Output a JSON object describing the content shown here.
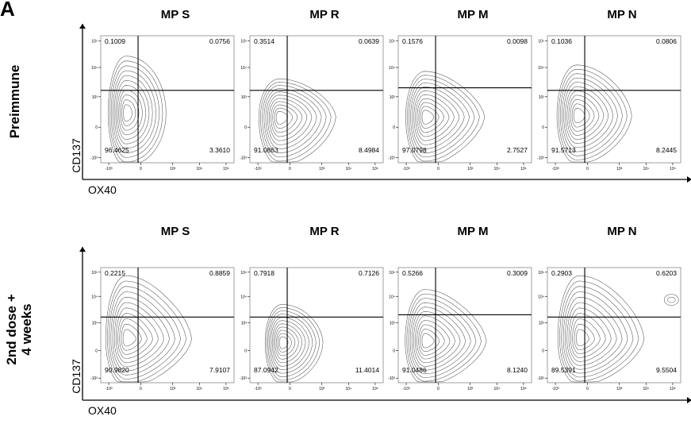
{
  "figure": {
    "panel_label": "A",
    "y_axis_label": "CD137",
    "x_axis_label": "OX40"
  },
  "chart_data": [
    {
      "type": "contour",
      "row": "Preimmune",
      "title": "MP S",
      "xlabel": "OX40",
      "ylabel": "CD137",
      "x_ticks": [
        "-10³",
        "0",
        "10³",
        "10⁴",
        "10⁵"
      ],
      "y_ticks": [
        "10⁵",
        "10⁴",
        "10³",
        "0",
        "-10³"
      ],
      "gate": {
        "x": 0.28,
        "y": 0.57
      },
      "quadrants": {
        "upper_left": "0.1009",
        "upper_right": "0.0756",
        "lower_left": "96.4625",
        "lower_right": "3.3610"
      }
    },
    {
      "type": "contour",
      "row": "Preimmune",
      "title": "MP R",
      "xlabel": "OX40",
      "ylabel": "CD137",
      "x_ticks": [
        "-10³",
        "0",
        "10³",
        "10⁴",
        "10⁵"
      ],
      "y_ticks": [
        "10⁵",
        "10⁴",
        "10³",
        "0",
        "-10³"
      ],
      "gate": {
        "x": 0.28,
        "y": 0.57
      },
      "quadrants": {
        "upper_left": "0.3514",
        "upper_right": "0.0639",
        "lower_left": "91.0863",
        "lower_right": "8.4984"
      }
    },
    {
      "type": "contour",
      "row": "Preimmune",
      "title": "MP M",
      "xlabel": "OX40",
      "ylabel": "CD137",
      "x_ticks": [
        "-10³",
        "0",
        "10³",
        "10⁴",
        "10⁵"
      ],
      "y_ticks": [
        "10⁵",
        "10⁴",
        "10³",
        "0",
        "-10³"
      ],
      "gate": {
        "x": 0.28,
        "y": 0.59
      },
      "quadrants": {
        "upper_left": "0.1576",
        "upper_right": "0.0098",
        "lower_left": "97.0798",
        "lower_right": "2.7527"
      }
    },
    {
      "type": "contour",
      "row": "Preimmune",
      "title": "MP N",
      "xlabel": "OX40",
      "ylabel": "CD137",
      "x_ticks": [
        "-10³",
        "0",
        "10³",
        "10⁴",
        "10⁵"
      ],
      "y_ticks": [
        "10⁵",
        "10⁴",
        "10³",
        "0",
        "-10³"
      ],
      "gate": {
        "x": 0.28,
        "y": 0.57
      },
      "quadrants": {
        "upper_left": "0.1036",
        "upper_right": "0.0806",
        "lower_left": "91.5713",
        "lower_right": "8.2445"
      }
    },
    {
      "type": "contour",
      "row": "2nd dose + 4 weeks",
      "title": "MP S",
      "xlabel": "OX40",
      "ylabel": "CD137",
      "x_ticks": [
        "-10³",
        "0",
        "10³",
        "10⁴",
        "10⁵"
      ],
      "y_ticks": [
        "10⁵",
        "10⁴",
        "10³",
        "0",
        "-10³"
      ],
      "gate": {
        "x": 0.28,
        "y": 0.57
      },
      "quadrants": {
        "upper_left": "0.2215",
        "upper_right": "0.8859",
        "lower_left": "90.9820",
        "lower_right": "7.9107"
      }
    },
    {
      "type": "contour",
      "row": "2nd dose + 4 weeks",
      "title": "MP R",
      "xlabel": "OX40",
      "ylabel": "CD137",
      "x_ticks": [
        "-10³",
        "0",
        "10³",
        "10⁴",
        "10⁵"
      ],
      "y_ticks": [
        "10⁵",
        "10⁴",
        "10³",
        "0",
        "-10³"
      ],
      "gate": {
        "x": 0.28,
        "y": 0.57
      },
      "quadrants": {
        "upper_left": "0.7918",
        "upper_right": "0.7126",
        "lower_left": "87.0942",
        "lower_right": "11.4014"
      }
    },
    {
      "type": "contour",
      "row": "2nd dose + 4 weeks",
      "title": "MP M",
      "xlabel": "OX40",
      "ylabel": "CD137",
      "x_ticks": [
        "-10³",
        "0",
        "10³",
        "10⁴",
        "10⁵"
      ],
      "y_ticks": [
        "10⁵",
        "10⁴",
        "10³",
        "0",
        "-10³"
      ],
      "gate": {
        "x": 0.28,
        "y": 0.59
      },
      "quadrants": {
        "upper_left": "0.5266",
        "upper_right": "0.3009",
        "lower_left": "91.0486",
        "lower_right": "8.1240"
      }
    },
    {
      "type": "contour",
      "row": "2nd dose + 4 weeks",
      "title": "MP N",
      "xlabel": "OX40",
      "ylabel": "CD137",
      "x_ticks": [
        "-10³",
        "0",
        "10³",
        "10⁴",
        "10⁵"
      ],
      "y_ticks": [
        "10⁵",
        "10⁴",
        "10³",
        "0",
        "-10³"
      ],
      "gate": {
        "x": 0.28,
        "y": 0.57
      },
      "quadrants": {
        "upper_left": "0.2903",
        "upper_right": "0.6203",
        "lower_left": "89.5391",
        "lower_right": "9.5504"
      }
    }
  ]
}
